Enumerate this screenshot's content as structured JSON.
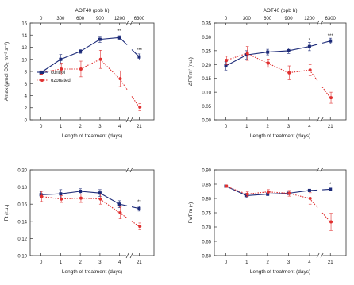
{
  "chart_data": [
    {
      "type": "line",
      "title": "",
      "top_axis_label": "AOT40 (ppb h)",
      "top_ticks": [
        "0",
        "300",
        "600",
        "900",
        "1200",
        "6300"
      ],
      "xlabel": "Length of treatment (days)",
      "ylabel": "Amax (μmol CO₂ m⁻² s⁻¹)",
      "x_ticks": [
        "0",
        "1",
        "2",
        "3",
        "4",
        "21"
      ],
      "x": [
        0,
        1,
        2,
        3,
        4,
        21
      ],
      "ylim": [
        0,
        16
      ],
      "y_ticks": [
        "0",
        "2",
        "4",
        "6",
        "8",
        "10",
        "12",
        "14",
        "16"
      ],
      "legend": "left",
      "series": [
        {
          "name": "control",
          "color": "#1c2a78",
          "style": "solid",
          "values": [
            7.8,
            10,
            11.3,
            13.3,
            13.6,
            10.4
          ],
          "errors": [
            0.3,
            0.8,
            0.3,
            0.5,
            0.3,
            0.5
          ]
        },
        {
          "name": "ozonated",
          "color": "#e03030",
          "style": "dotted",
          "values": [
            7.8,
            8.4,
            8.4,
            10,
            6.8,
            2.1
          ],
          "errors": [
            0.3,
            1.0,
            1.3,
            1.5,
            1.3,
            0.6
          ]
        }
      ],
      "annotations": [
        {
          "x": 4,
          "y": 14.4,
          "text": "**"
        },
        {
          "x": 21,
          "y": 11.3,
          "text": "***"
        }
      ]
    },
    {
      "type": "line",
      "title": "",
      "top_axis_label": "AOT40 (ppb h)",
      "top_ticks": [
        "0",
        "300",
        "600",
        "900",
        "1200",
        "6300"
      ],
      "xlabel": "Length of treatment (days)",
      "ylabel": "ΔF/Fm' (r.u.)",
      "x_ticks": [
        "0",
        "1",
        "2",
        "3",
        "4",
        "21"
      ],
      "x": [
        0,
        1,
        2,
        3,
        4,
        21
      ],
      "ylim": [
        0,
        0.35
      ],
      "y_ticks": [
        "0.00",
        "0.05",
        "0.10",
        "0.15",
        "0.20",
        "0.25",
        "0.30",
        "0.35"
      ],
      "series": [
        {
          "name": "control",
          "color": "#1c2a78",
          "style": "solid",
          "values": [
            0.195,
            0.235,
            0.245,
            0.25,
            0.265,
            0.285
          ],
          "errors": [
            0.015,
            0.015,
            0.01,
            0.01,
            0.015,
            0.01
          ]
        },
        {
          "name": "ozonated",
          "color": "#e03030",
          "style": "dotted",
          "values": [
            0.215,
            0.24,
            0.205,
            0.17,
            0.18,
            0.08
          ],
          "errors": [
            0.015,
            0.025,
            0.015,
            0.025,
            0.02,
            0.02
          ]
        }
      ],
      "annotations": [
        {
          "x": 4,
          "y": 0.283,
          "text": "*"
        },
        {
          "x": 21,
          "y": 0.298,
          "text": "***"
        }
      ]
    },
    {
      "type": "line",
      "title": "",
      "xlabel": "Length of treatment (days)",
      "ylabel": "Ft (r.u.)",
      "x_ticks": [
        "0",
        "1",
        "2",
        "3",
        "4",
        "21"
      ],
      "x": [
        0,
        1,
        2,
        3,
        4,
        21
      ],
      "ylim": [
        0.1,
        0.2
      ],
      "y_ticks": [
        "0.10",
        "0.12",
        "0.14",
        "0.16",
        "0.18",
        "0.20"
      ],
      "series": [
        {
          "name": "control",
          "color": "#1c2a78",
          "style": "solid",
          "values": [
            0.171,
            0.172,
            0.175,
            0.173,
            0.16,
            0.155
          ],
          "errors": [
            0.004,
            0.005,
            0.003,
            0.004,
            0.004,
            0.003
          ]
        },
        {
          "name": "ozonated",
          "color": "#e03030",
          "style": "dotted",
          "values": [
            0.169,
            0.166,
            0.167,
            0.166,
            0.15,
            0.134
          ],
          "errors": [
            0.006,
            0.004,
            0.005,
            0.006,
            0.007,
            0.004
          ]
        }
      ],
      "annotations": [
        {
          "x": 21,
          "y": 0.161,
          "text": "**"
        }
      ]
    },
    {
      "type": "line",
      "title": "",
      "xlabel": "Length of treatment (days)",
      "ylabel": "Fv/Fm (-)",
      "x_ticks": [
        "0",
        "1",
        "2",
        "3",
        "4",
        "21"
      ],
      "x": [
        0,
        1,
        2,
        3,
        4,
        21
      ],
      "ylim": [
        0.6,
        0.9
      ],
      "y_ticks": [
        "0.60",
        "0.65",
        "0.70",
        "0.75",
        "0.80",
        "0.85",
        "0.90"
      ],
      "series": [
        {
          "name": "control",
          "color": "#1c2a78",
          "style": "solid",
          "values": [
            0.843,
            0.81,
            0.815,
            0.818,
            0.828,
            0.832
          ],
          "errors": [
            0.004,
            0.008,
            0.005,
            0.005,
            0.004,
            0.004
          ]
        },
        {
          "name": "ozonated",
          "color": "#e03030",
          "style": "dotted",
          "values": [
            0.843,
            0.815,
            0.823,
            0.818,
            0.8,
            0.718
          ],
          "errors": [
            0.004,
            0.008,
            0.008,
            0.01,
            0.02,
            0.03
          ]
        }
      ],
      "annotations": [
        {
          "x": 21,
          "y": 0.845,
          "text": "*"
        }
      ]
    }
  ]
}
